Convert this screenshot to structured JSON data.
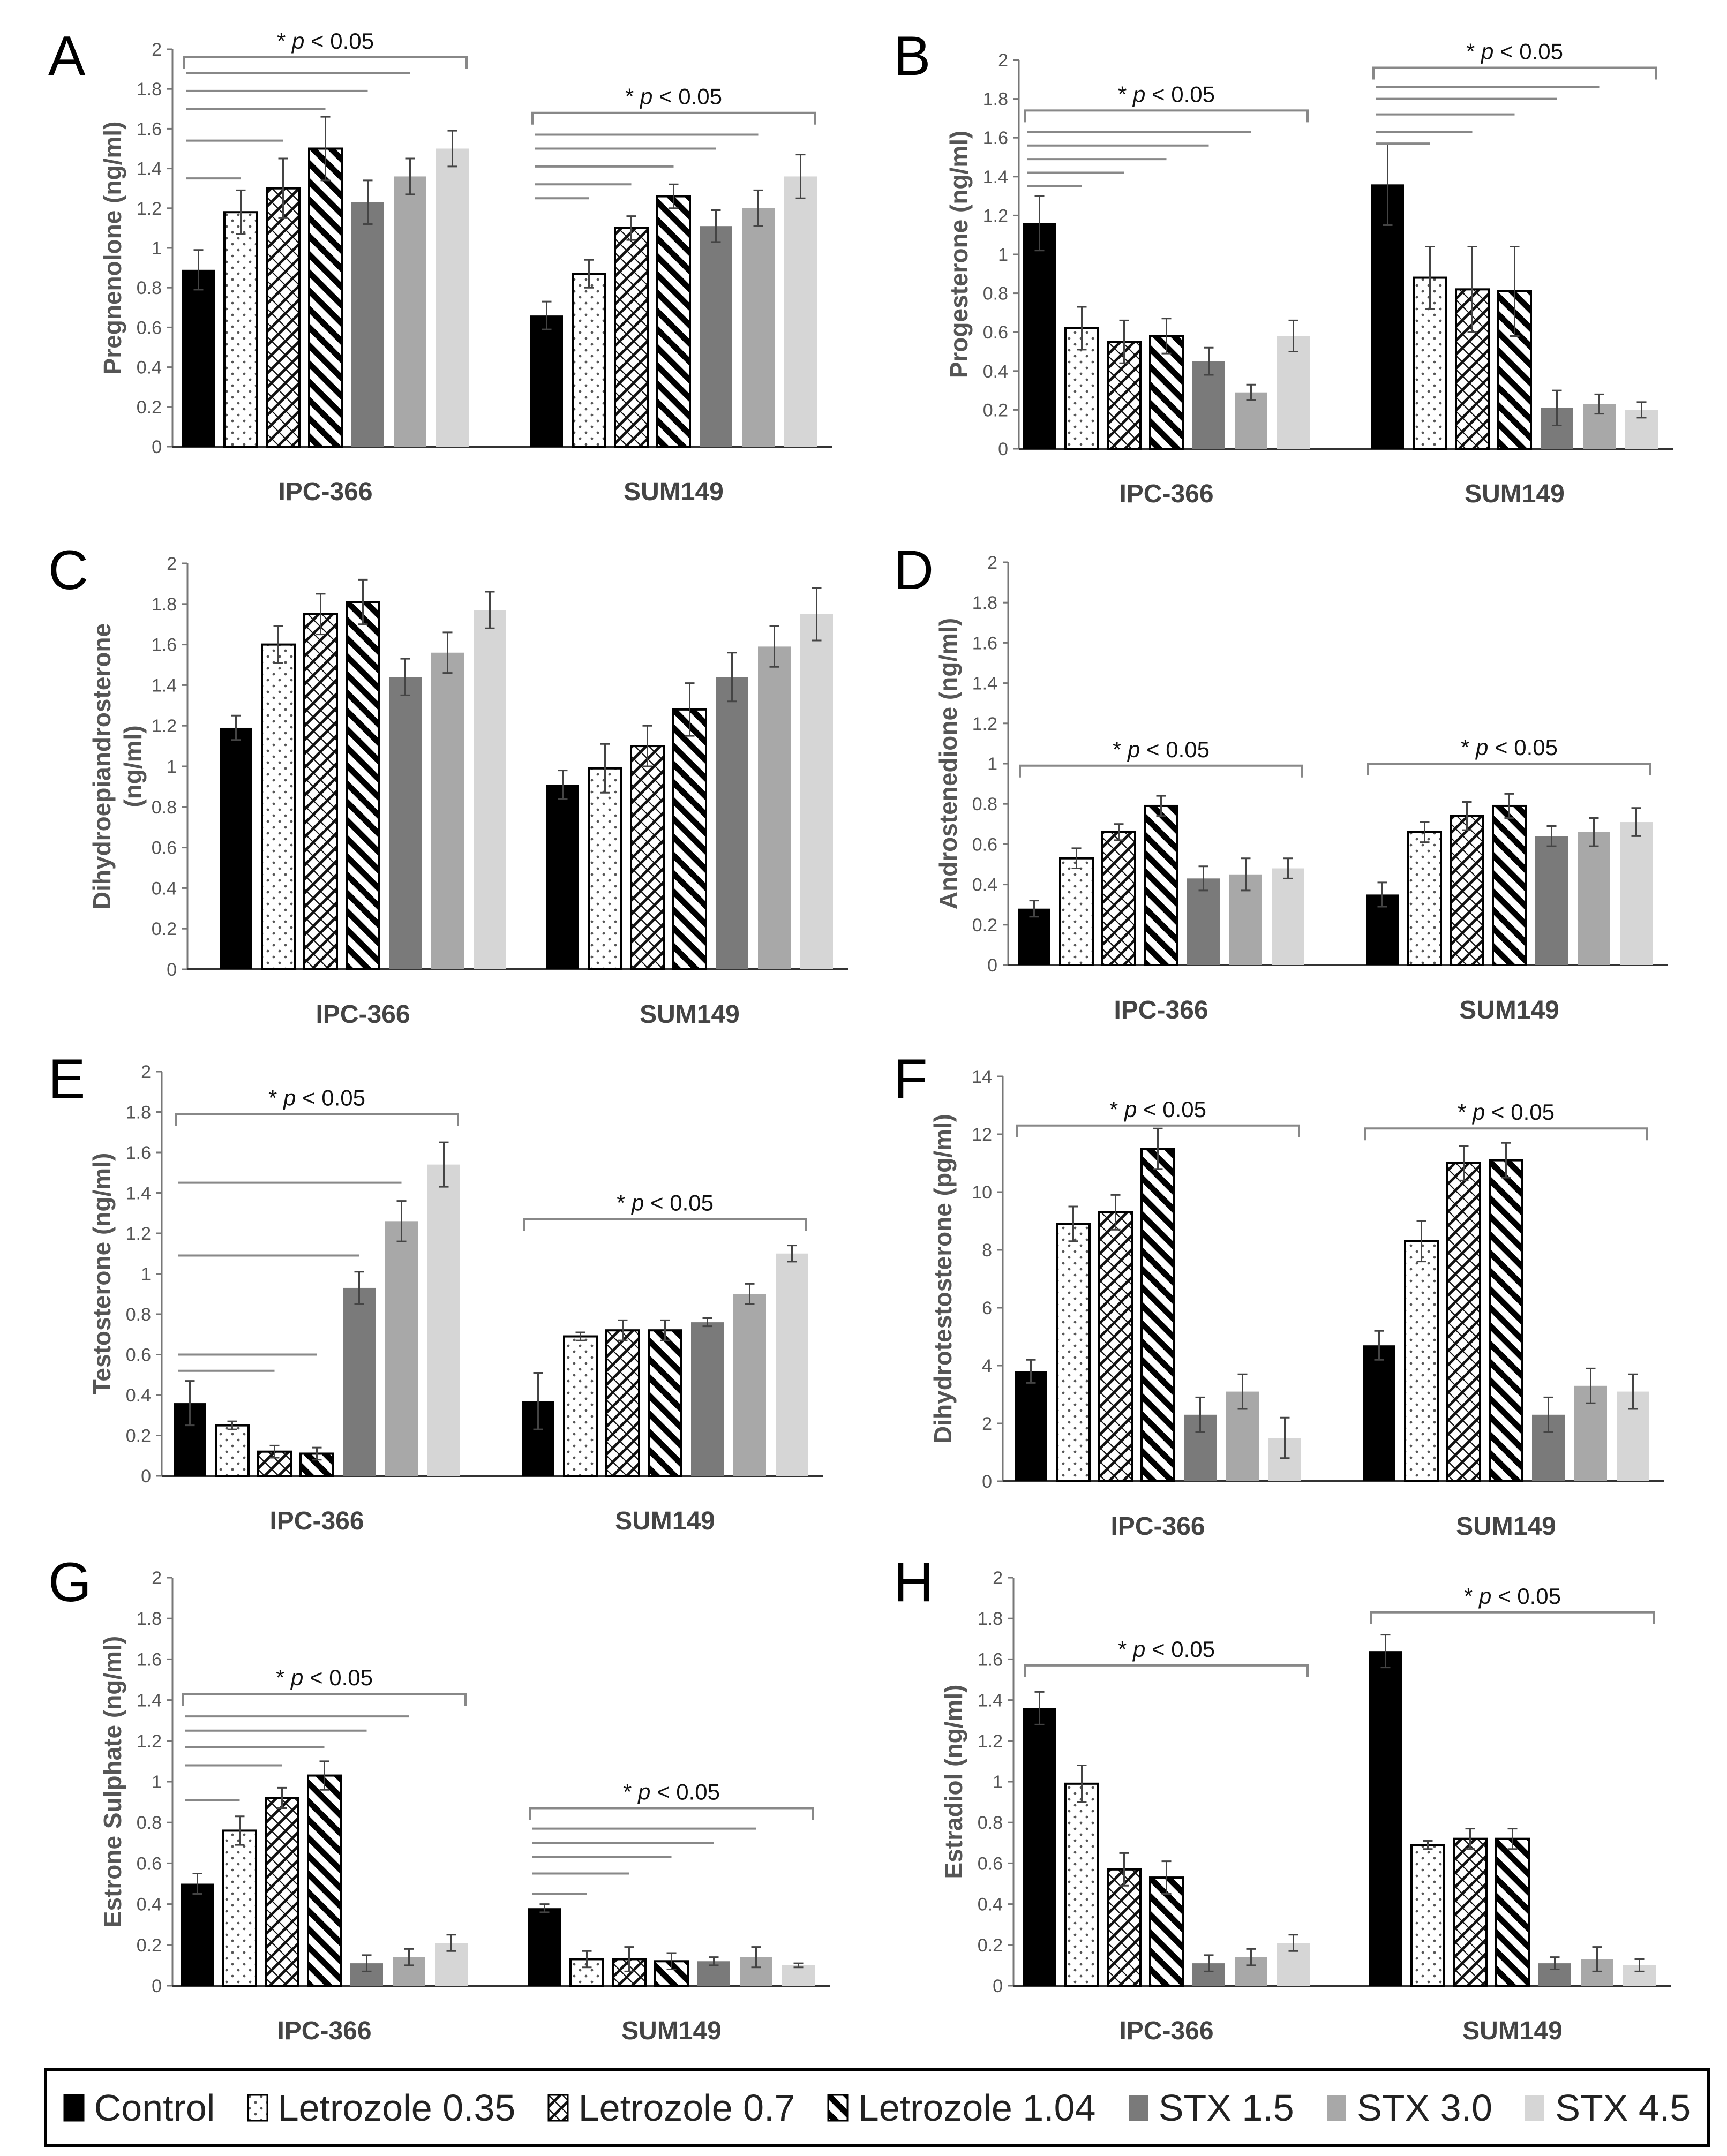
{
  "figure": {
    "cell_lines": [
      "IPC-366",
      "SUM149"
    ],
    "treatments": [
      "Control",
      "Letrozole 0.35",
      "Letrozole 0.7",
      "Letrozole 1.04",
      "STX 1.5",
      "STX 3.0",
      "STX 4.5"
    ]
  },
  "legend": {
    "items": [
      {
        "label": "Control",
        "pattern": "solid-black"
      },
      {
        "label": "Letrozole 0.35",
        "pattern": "dots"
      },
      {
        "label": "Letrozole 0.7",
        "pattern": "crosshatch"
      },
      {
        "label": "Letrozole 1.04",
        "pattern": "diagonal-bold"
      },
      {
        "label": "STX 1.5",
        "pattern": "gray-dark"
      },
      {
        "label": "STX 3.0",
        "pattern": "gray-mid"
      },
      {
        "label": "STX 4.5",
        "pattern": "gray-light"
      }
    ]
  },
  "chart_data": [
    {
      "panel": "A",
      "type": "bar",
      "ylabel": "Pregnenolone (ng/ml)",
      "categories": [
        "IPC-366",
        "SUM149"
      ],
      "ylim": [
        0,
        2
      ],
      "ytick_step": 0.2,
      "tick_decimals": 1,
      "series": [
        {
          "name": "Control",
          "values": [
            0.89,
            0.66
          ],
          "errors": [
            0.1,
            0.07
          ]
        },
        {
          "name": "Letrozole 0.35",
          "values": [
            1.18,
            0.87
          ],
          "errors": [
            0.11,
            0.07
          ]
        },
        {
          "name": "Letrozole 0.7",
          "values": [
            1.3,
            1.1
          ],
          "errors": [
            0.15,
            0.06
          ]
        },
        {
          "name": "Letrozole 1.04",
          "values": [
            1.5,
            1.26
          ],
          "errors": [
            0.16,
            0.06
          ]
        },
        {
          "name": "STX 1.5",
          "values": [
            1.23,
            1.11
          ],
          "errors": [
            0.11,
            0.08
          ]
        },
        {
          "name": "STX 3.0",
          "values": [
            1.36,
            1.2
          ],
          "errors": [
            0.09,
            0.09
          ]
        },
        {
          "name": "STX 4.5",
          "values": [
            1.5,
            1.36
          ],
          "errors": [
            0.09,
            0.11
          ]
        }
      ],
      "brackets": [
        {
          "group": 0,
          "from": 0,
          "to": 6,
          "level": 1.96,
          "label": "* p < 0.05"
        },
        {
          "group": 1,
          "from": 0,
          "to": 6,
          "level": 1.68,
          "label": "* p < 0.05"
        }
      ],
      "comparison_lines": [
        {
          "group": 0,
          "from": 0,
          "to": 5,
          "level": 1.88
        },
        {
          "group": 0,
          "from": 0,
          "to": 4,
          "level": 1.79
        },
        {
          "group": 0,
          "from": 0,
          "to": 3,
          "level": 1.7
        },
        {
          "group": 0,
          "from": 0,
          "to": 2,
          "level": 1.54
        },
        {
          "group": 0,
          "from": 0,
          "to": 1,
          "level": 1.35
        },
        {
          "group": 1,
          "from": 0,
          "to": 5,
          "level": 1.57
        },
        {
          "group": 1,
          "from": 0,
          "to": 4,
          "level": 1.5
        },
        {
          "group": 1,
          "from": 0,
          "to": 3,
          "level": 1.41
        },
        {
          "group": 1,
          "from": 0,
          "to": 2,
          "level": 1.32
        },
        {
          "group": 1,
          "from": 0,
          "to": 1,
          "level": 1.25
        }
      ]
    },
    {
      "panel": "B",
      "type": "bar",
      "ylabel": "Progesterone (ng/ml)",
      "categories": [
        "IPC-366",
        "SUM149"
      ],
      "ylim": [
        0,
        2
      ],
      "ytick_step": 0.2,
      "tick_decimals": 1,
      "series": [
        {
          "name": "Control",
          "values": [
            1.16,
            1.36
          ],
          "errors": [
            0.14,
            0.21
          ]
        },
        {
          "name": "Letrozole 0.35",
          "values": [
            0.62,
            0.88
          ],
          "errors": [
            0.11,
            0.16
          ]
        },
        {
          "name": "Letrozole 0.7",
          "values": [
            0.55,
            0.82
          ],
          "errors": [
            0.11,
            0.22
          ]
        },
        {
          "name": "Letrozole 1.04",
          "values": [
            0.58,
            0.81
          ],
          "errors": [
            0.09,
            0.23
          ]
        },
        {
          "name": "STX 1.5",
          "values": [
            0.45,
            0.21
          ],
          "errors": [
            0.07,
            0.09
          ]
        },
        {
          "name": "STX 3.0",
          "values": [
            0.29,
            0.23
          ],
          "errors": [
            0.04,
            0.05
          ]
        },
        {
          "name": "STX 4.5",
          "values": [
            0.58,
            0.2
          ],
          "errors": [
            0.08,
            0.04
          ]
        }
      ],
      "brackets": [
        {
          "group": 0,
          "from": 0,
          "to": 6,
          "level": 1.74,
          "label": "* p < 0.05"
        },
        {
          "group": 1,
          "from": 0,
          "to": 6,
          "level": 1.96,
          "label": "* p < 0.05"
        }
      ],
      "comparison_lines": [
        {
          "group": 0,
          "from": 0,
          "to": 5,
          "level": 1.63
        },
        {
          "group": 0,
          "from": 0,
          "to": 4,
          "level": 1.56
        },
        {
          "group": 0,
          "from": 0,
          "to": 3,
          "level": 1.49
        },
        {
          "group": 0,
          "from": 0,
          "to": 2,
          "level": 1.42
        },
        {
          "group": 0,
          "from": 0,
          "to": 1,
          "level": 1.35
        },
        {
          "group": 1,
          "from": 0,
          "to": 5,
          "level": 1.86
        },
        {
          "group": 1,
          "from": 0,
          "to": 4,
          "level": 1.8
        },
        {
          "group": 1,
          "from": 0,
          "to": 3,
          "level": 1.72
        },
        {
          "group": 1,
          "from": 0,
          "to": 2,
          "level": 1.63
        },
        {
          "group": 1,
          "from": 0,
          "to": 1,
          "level": 1.57
        }
      ]
    },
    {
      "panel": "C",
      "type": "bar",
      "ylabel": "Dihydroepiandrosterone (ng/ml)",
      "categories": [
        "IPC-366",
        "SUM149"
      ],
      "ylim": [
        0,
        2
      ],
      "ytick_step": 0.2,
      "tick_decimals": 1,
      "series": [
        {
          "name": "Control",
          "values": [
            1.19,
            0.91
          ],
          "errors": [
            0.06,
            0.07
          ]
        },
        {
          "name": "Letrozole 0.35",
          "values": [
            1.6,
            0.99
          ],
          "errors": [
            0.09,
            0.12
          ]
        },
        {
          "name": "Letrozole 0.7",
          "values": [
            1.75,
            1.1
          ],
          "errors": [
            0.1,
            0.1
          ]
        },
        {
          "name": "Letrozole 1.04",
          "values": [
            1.81,
            1.28
          ],
          "errors": [
            0.11,
            0.13
          ]
        },
        {
          "name": "STX 1.5",
          "values": [
            1.44,
            1.44
          ],
          "errors": [
            0.09,
            0.12
          ]
        },
        {
          "name": "STX 3.0",
          "values": [
            1.56,
            1.59
          ],
          "errors": [
            0.1,
            0.1
          ]
        },
        {
          "name": "STX 4.5",
          "values": [
            1.77,
            1.75
          ],
          "errors": [
            0.09,
            0.13
          ]
        }
      ],
      "brackets": [],
      "comparison_lines": []
    },
    {
      "panel": "D",
      "type": "bar",
      "ylabel": "Androstenedione (ng/ml)",
      "categories": [
        "IPC-366",
        "SUM149"
      ],
      "ylim": [
        0,
        2
      ],
      "ytick_step": 0.2,
      "tick_decimals": 1,
      "series": [
        {
          "name": "Control",
          "values": [
            0.28,
            0.35
          ],
          "errors": [
            0.04,
            0.06
          ]
        },
        {
          "name": "Letrozole 0.35",
          "values": [
            0.53,
            0.66
          ],
          "errors": [
            0.05,
            0.05
          ]
        },
        {
          "name": "Letrozole 0.7",
          "values": [
            0.66,
            0.74
          ],
          "errors": [
            0.04,
            0.07
          ]
        },
        {
          "name": "Letrozole 1.04",
          "values": [
            0.79,
            0.79
          ],
          "errors": [
            0.05,
            0.06
          ]
        },
        {
          "name": "STX 1.5",
          "values": [
            0.43,
            0.64
          ],
          "errors": [
            0.06,
            0.05
          ]
        },
        {
          "name": "STX 3.0",
          "values": [
            0.45,
            0.66
          ],
          "errors": [
            0.08,
            0.07
          ]
        },
        {
          "name": "STX 4.5",
          "values": [
            0.48,
            0.71
          ],
          "errors": [
            0.05,
            0.07
          ]
        }
      ],
      "brackets": [
        {
          "group": 0,
          "from": 0,
          "to": 6,
          "level": 0.99,
          "label": "* p < 0.05"
        },
        {
          "group": 1,
          "from": 0,
          "to": 6,
          "level": 1.0,
          "label": "* p < 0.05"
        }
      ],
      "comparison_lines": []
    },
    {
      "panel": "E",
      "type": "bar",
      "ylabel": "Testosterone (ng/ml)",
      "categories": [
        "IPC-366",
        "SUM149"
      ],
      "ylim": [
        0,
        2
      ],
      "ytick_step": 0.2,
      "tick_decimals": 1,
      "series": [
        {
          "name": "Control",
          "values": [
            0.36,
            0.37
          ],
          "errors": [
            0.11,
            0.14
          ]
        },
        {
          "name": "Letrozole 0.35",
          "values": [
            0.25,
            0.69
          ],
          "errors": [
            0.02,
            0.02
          ]
        },
        {
          "name": "Letrozole 0.7",
          "values": [
            0.12,
            0.72
          ],
          "errors": [
            0.03,
            0.05
          ]
        },
        {
          "name": "Letrozole 1.04",
          "values": [
            0.11,
            0.72
          ],
          "errors": [
            0.03,
            0.05
          ]
        },
        {
          "name": "STX 1.5",
          "values": [
            0.93,
            0.76
          ],
          "errors": [
            0.08,
            0.02
          ]
        },
        {
          "name": "STX 3.0",
          "values": [
            1.26,
            0.9
          ],
          "errors": [
            0.1,
            0.05
          ]
        },
        {
          "name": "STX 4.5",
          "values": [
            1.54,
            1.1
          ],
          "errors": [
            0.11,
            0.04
          ]
        }
      ],
      "brackets": [
        {
          "group": 0,
          "from": 0,
          "to": 6,
          "level": 1.79,
          "label": "* p < 0.05"
        },
        {
          "group": 1,
          "from": 0,
          "to": 6,
          "level": 1.27,
          "label": "* p < 0.05"
        }
      ],
      "comparison_lines": [
        {
          "group": 0,
          "from": 0,
          "to": 5,
          "level": 1.45
        },
        {
          "group": 0,
          "from": 0,
          "to": 4,
          "level": 1.09
        },
        {
          "group": 0,
          "from": 0,
          "to": 3,
          "level": 0.6
        },
        {
          "group": 0,
          "from": 0,
          "to": 2,
          "level": 0.52
        }
      ]
    },
    {
      "panel": "F",
      "type": "bar",
      "ylabel": "Dihydrotestosterone (pg/ml)",
      "categories": [
        "IPC-366",
        "SUM149"
      ],
      "ylim": [
        0,
        14
      ],
      "ytick_step": 2,
      "tick_decimals": 0,
      "series": [
        {
          "name": "Control",
          "values": [
            3.8,
            4.7
          ],
          "errors": [
            0.4,
            0.5
          ]
        },
        {
          "name": "Letrozole 0.35",
          "values": [
            8.9,
            8.3
          ],
          "errors": [
            0.6,
            0.7
          ]
        },
        {
          "name": "Letrozole 0.7",
          "values": [
            9.3,
            11.0
          ],
          "errors": [
            0.6,
            0.6
          ]
        },
        {
          "name": "Letrozole 1.04",
          "values": [
            11.5,
            11.1
          ],
          "errors": [
            0.7,
            0.6
          ]
        },
        {
          "name": "STX 1.5",
          "values": [
            2.3,
            2.3
          ],
          "errors": [
            0.6,
            0.6
          ]
        },
        {
          "name": "STX 3.0",
          "values": [
            3.1,
            3.3
          ],
          "errors": [
            0.6,
            0.6
          ]
        },
        {
          "name": "STX 4.5",
          "values": [
            1.5,
            3.1
          ],
          "errors": [
            0.7,
            0.6
          ]
        }
      ],
      "brackets": [
        {
          "group": 0,
          "from": 0,
          "to": 6,
          "level": 12.3,
          "label": "* p < 0.05"
        },
        {
          "group": 1,
          "from": 0,
          "to": 6,
          "level": 12.2,
          "label": "* p < 0.05"
        }
      ],
      "comparison_lines": []
    },
    {
      "panel": "G",
      "type": "bar",
      "ylabel": "Estrone Sulphate (ng/ml)",
      "categories": [
        "IPC-366",
        "SUM149"
      ],
      "ylim": [
        0,
        2
      ],
      "ytick_step": 0.2,
      "tick_decimals": 1,
      "series": [
        {
          "name": "Control",
          "values": [
            0.5,
            0.38
          ],
          "errors": [
            0.05,
            0.02
          ]
        },
        {
          "name": "Letrozole 0.35",
          "values": [
            0.76,
            0.13
          ],
          "errors": [
            0.07,
            0.04
          ]
        },
        {
          "name": "Letrozole 0.7",
          "values": [
            0.92,
            0.13
          ],
          "errors": [
            0.05,
            0.06
          ]
        },
        {
          "name": "Letrozole 1.04",
          "values": [
            1.03,
            0.12
          ],
          "errors": [
            0.07,
            0.04
          ]
        },
        {
          "name": "STX 1.5",
          "values": [
            0.11,
            0.12
          ],
          "errors": [
            0.04,
            0.02
          ]
        },
        {
          "name": "STX 3.0",
          "values": [
            0.14,
            0.14
          ],
          "errors": [
            0.04,
            0.05
          ]
        },
        {
          "name": "STX 4.5",
          "values": [
            0.21,
            0.1
          ],
          "errors": [
            0.04,
            0.01
          ]
        }
      ],
      "brackets": [
        {
          "group": 0,
          "from": 0,
          "to": 6,
          "level": 1.43,
          "label": "* p < 0.05"
        },
        {
          "group": 1,
          "from": 0,
          "to": 6,
          "level": 0.87,
          "label": "* p < 0.05"
        }
      ],
      "comparison_lines": [
        {
          "group": 0,
          "from": 0,
          "to": 5,
          "level": 1.32
        },
        {
          "group": 0,
          "from": 0,
          "to": 4,
          "level": 1.25
        },
        {
          "group": 0,
          "from": 0,
          "to": 3,
          "level": 1.17
        },
        {
          "group": 0,
          "from": 0,
          "to": 2,
          "level": 1.08
        },
        {
          "group": 0,
          "from": 0,
          "to": 1,
          "level": 0.91
        },
        {
          "group": 1,
          "from": 0,
          "to": 5,
          "level": 0.77
        },
        {
          "group": 1,
          "from": 0,
          "to": 4,
          "level": 0.7
        },
        {
          "group": 1,
          "from": 0,
          "to": 3,
          "level": 0.63
        },
        {
          "group": 1,
          "from": 0,
          "to": 2,
          "level": 0.55
        },
        {
          "group": 1,
          "from": 0,
          "to": 1,
          "level": 0.45
        }
      ]
    },
    {
      "panel": "H",
      "type": "bar",
      "ylabel": "Estradiol (ng/ml)",
      "categories": [
        "IPC-366",
        "SUM149"
      ],
      "ylim": [
        0,
        2
      ],
      "ytick_step": 0.2,
      "tick_decimals": 1,
      "series": [
        {
          "name": "Control",
          "values": [
            1.36,
            1.64
          ],
          "errors": [
            0.08,
            0.08
          ]
        },
        {
          "name": "Letrozole 0.35",
          "values": [
            0.99,
            0.69
          ],
          "errors": [
            0.09,
            0.02
          ]
        },
        {
          "name": "Letrozole 0.7",
          "values": [
            0.57,
            0.72
          ],
          "errors": [
            0.08,
            0.05
          ]
        },
        {
          "name": "Letrozole 1.04",
          "values": [
            0.53,
            0.72
          ],
          "errors": [
            0.08,
            0.05
          ]
        },
        {
          "name": "STX 1.5",
          "values": [
            0.11,
            0.11
          ],
          "errors": [
            0.04,
            0.03
          ]
        },
        {
          "name": "STX 3.0",
          "values": [
            0.14,
            0.13
          ],
          "errors": [
            0.04,
            0.06
          ]
        },
        {
          "name": "STX 4.5",
          "values": [
            0.21,
            0.1
          ],
          "errors": [
            0.04,
            0.03
          ]
        }
      ],
      "brackets": [
        {
          "group": 0,
          "from": 0,
          "to": 6,
          "level": 1.57,
          "label": "* p < 0.05"
        },
        {
          "group": 1,
          "from": 0,
          "to": 6,
          "level": 1.83,
          "label": "* p < 0.05"
        }
      ],
      "comparison_lines": []
    }
  ]
}
